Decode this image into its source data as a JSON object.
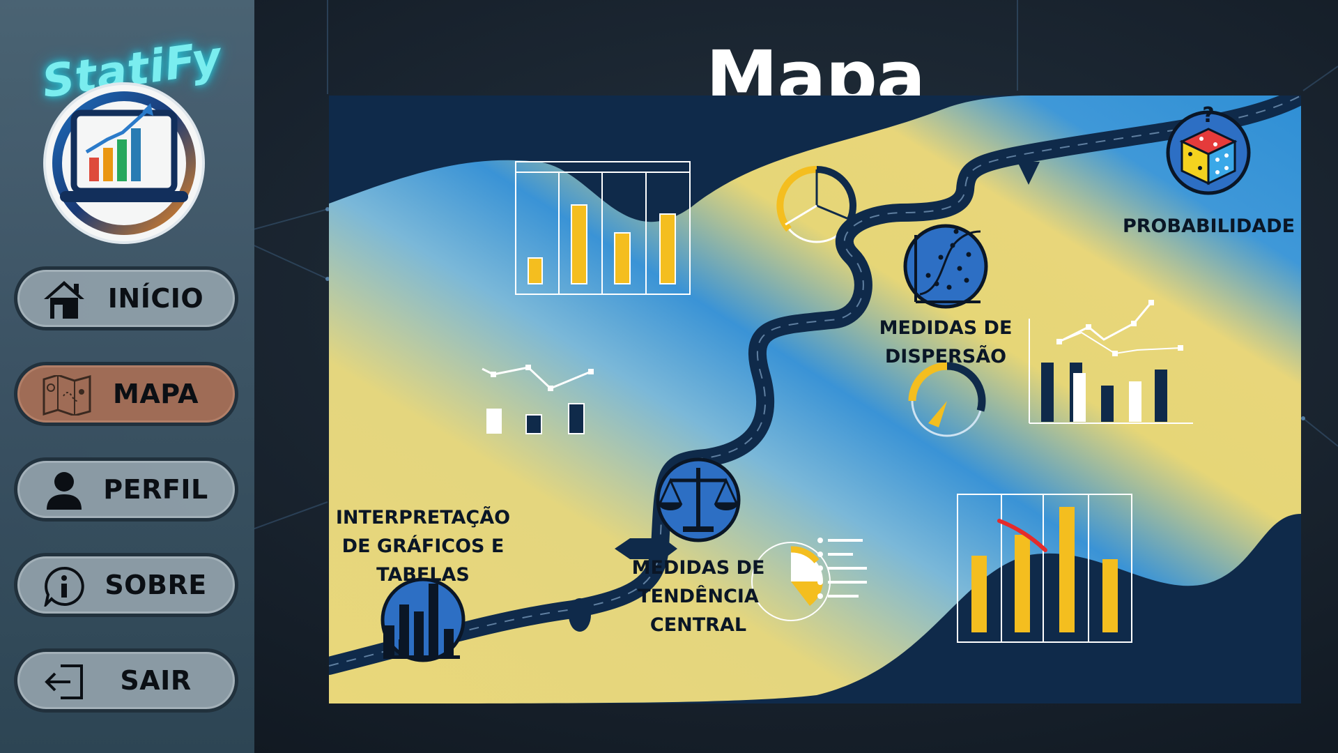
{
  "app": {
    "name": "StatiFy"
  },
  "page": {
    "title": "Mapa"
  },
  "nav": {
    "items": [
      {
        "id": "inicio",
        "label": "INÍCIO",
        "icon": "home-icon",
        "active": false
      },
      {
        "id": "mapa",
        "label": "MAPA",
        "icon": "map-icon",
        "active": true
      },
      {
        "id": "perfil",
        "label": "PERFIL",
        "icon": "user-icon",
        "active": false
      },
      {
        "id": "sobre",
        "label": "SOBRE",
        "icon": "info-icon",
        "active": false
      },
      {
        "id": "sair",
        "label": "SAIR",
        "icon": "logout-icon",
        "active": false
      }
    ]
  },
  "map": {
    "nodes": [
      {
        "id": "graficos",
        "label_lines": [
          "INTERPRETAÇÃO",
          "DE GRÁFICOS E",
          "TABELAS"
        ],
        "icon": "bar-chart-icon"
      },
      {
        "id": "tendencia",
        "label_lines": [
          "MEDIDAS DE",
          "TENDÊNCIA",
          "CENTRAL"
        ],
        "icon": "scale-icon"
      },
      {
        "id": "dispersao",
        "label_lines": [
          "MEDIDAS DE",
          "DISPERSÃO"
        ],
        "icon": "scatter-plot-icon"
      },
      {
        "id": "probabilidade",
        "label_lines": [
          "PROBABILIDADE"
        ],
        "icon": "dice-icon"
      }
    ]
  },
  "colors": {
    "sidebar": "#3f5868",
    "active_button": "#a57058",
    "button": "#8fa0aa",
    "map_blue": "#2f8fd5",
    "map_yellow": "#e8d67a",
    "map_navy": "#0f2a4a",
    "accent_yellow": "#f4be1f",
    "brand_glow": "#7ff6f8"
  }
}
